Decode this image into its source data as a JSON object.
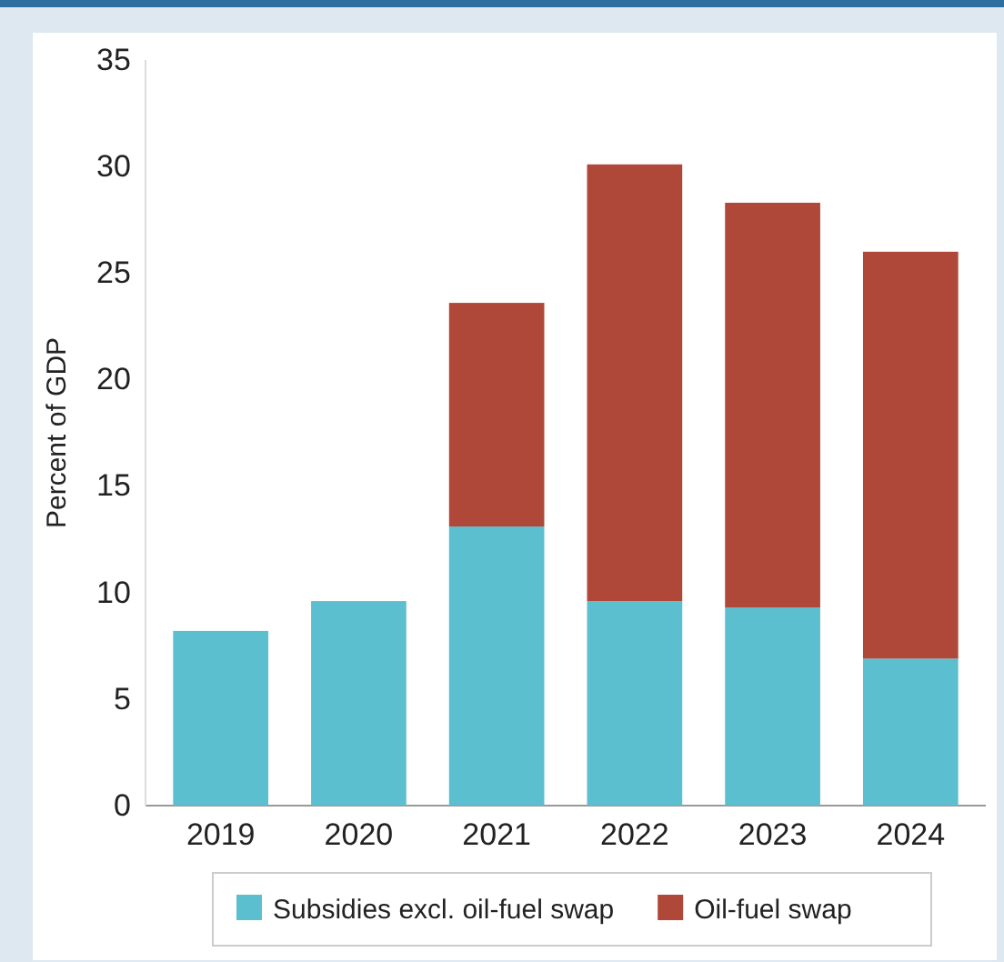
{
  "chart_data": {
    "type": "bar",
    "stacked": true,
    "ylabel": "Percent of GDP",
    "categories": [
      "2019",
      "2020",
      "2021",
      "2022",
      "2023",
      "2024"
    ],
    "series": [
      {
        "name": "Subsidies excl. oil-fuel swap",
        "color": "#5bbfcf",
        "values": [
          8.2,
          9.6,
          13.1,
          9.6,
          9.3,
          6.9
        ]
      },
      {
        "name": "Oil-fuel swap",
        "color": "#b0483a",
        "values": [
          0,
          0,
          10.5,
          20.5,
          19.0,
          19.1
        ]
      }
    ],
    "ylim": [
      0,
      35
    ],
    "yticks": [
      0,
      5,
      10,
      15,
      20,
      25,
      30,
      35
    ],
    "grid": false,
    "legend": "bottom"
  }
}
